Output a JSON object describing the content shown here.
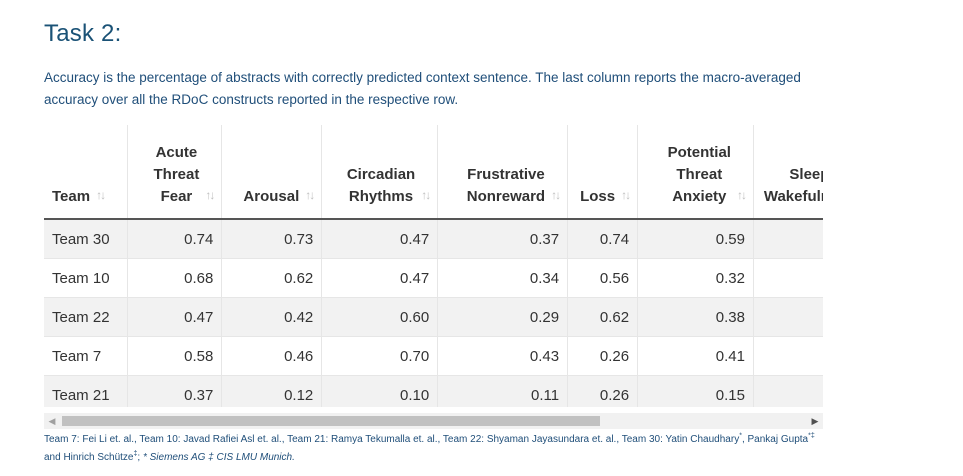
{
  "title": "Task 2:",
  "description": "Accuracy is the percentage of abstracts with correctly predicted context sentence. The last column reports the macro-averaged accuracy over all the RDoC constructs reported in the respective row.",
  "sort_icon": "↑↓",
  "columns": [
    {
      "lines": [
        "Team"
      ]
    },
    {
      "lines": [
        "Acute",
        "Threat",
        "Fear"
      ]
    },
    {
      "lines": [
        "Arousal"
      ]
    },
    {
      "lines": [
        "Circadian",
        "Rhythms"
      ]
    },
    {
      "lines": [
        "Frustrative",
        "Nonreward"
      ]
    },
    {
      "lines": [
        "Loss"
      ]
    },
    {
      "lines": [
        "Potential",
        "Threat",
        "Anxiety"
      ]
    },
    {
      "lines": [
        "Sleep",
        "Wakefulness"
      ]
    }
  ],
  "rows": [
    [
      "Team 30",
      "0.74",
      "0.73",
      "0.47",
      "0.37",
      "0.74",
      "0.59",
      ""
    ],
    [
      "Team 10",
      "0.68",
      "0.62",
      "0.47",
      "0.34",
      "0.56",
      "0.32",
      ""
    ],
    [
      "Team 22",
      "0.47",
      "0.42",
      "0.60",
      "0.29",
      "0.62",
      "0.38",
      ""
    ],
    [
      "Team 7",
      "0.58",
      "0.46",
      "0.70",
      "0.43",
      "0.26",
      "0.41",
      ""
    ],
    [
      "Team 21",
      "0.37",
      "0.12",
      "0.10",
      "0.11",
      "0.26",
      "0.15",
      ""
    ]
  ],
  "footnote": {
    "part1": "Team 7: Fei Li et. al., Team 10: Javad Rafiei Asl et. al., Team 21: Ramya Tekumalla et. al., Team 22: Shyaman Jayasundara et. al., Team 30: Yatin Chaudhary",
    "sup1": "*",
    "part2": ", Pankaj Gupta",
    "sup2": "*‡",
    "part3": " and Hinrich Schütze",
    "sup3": "‡",
    "part4": "; ",
    "affiliations": "* Siemens AG ‡ CIS LMU Munich."
  }
}
